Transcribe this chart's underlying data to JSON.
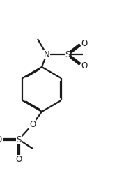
{
  "bg_color": "#ffffff",
  "line_color": "#1a1a1a",
  "line_width": 1.6,
  "dbo": 0.012,
  "fs": 8.5,
  "figsize": [
    1.91,
    2.58
  ],
  "dpi": 100,
  "xlim": [
    0,
    1.91
  ],
  "ylim": [
    0,
    2.58
  ]
}
